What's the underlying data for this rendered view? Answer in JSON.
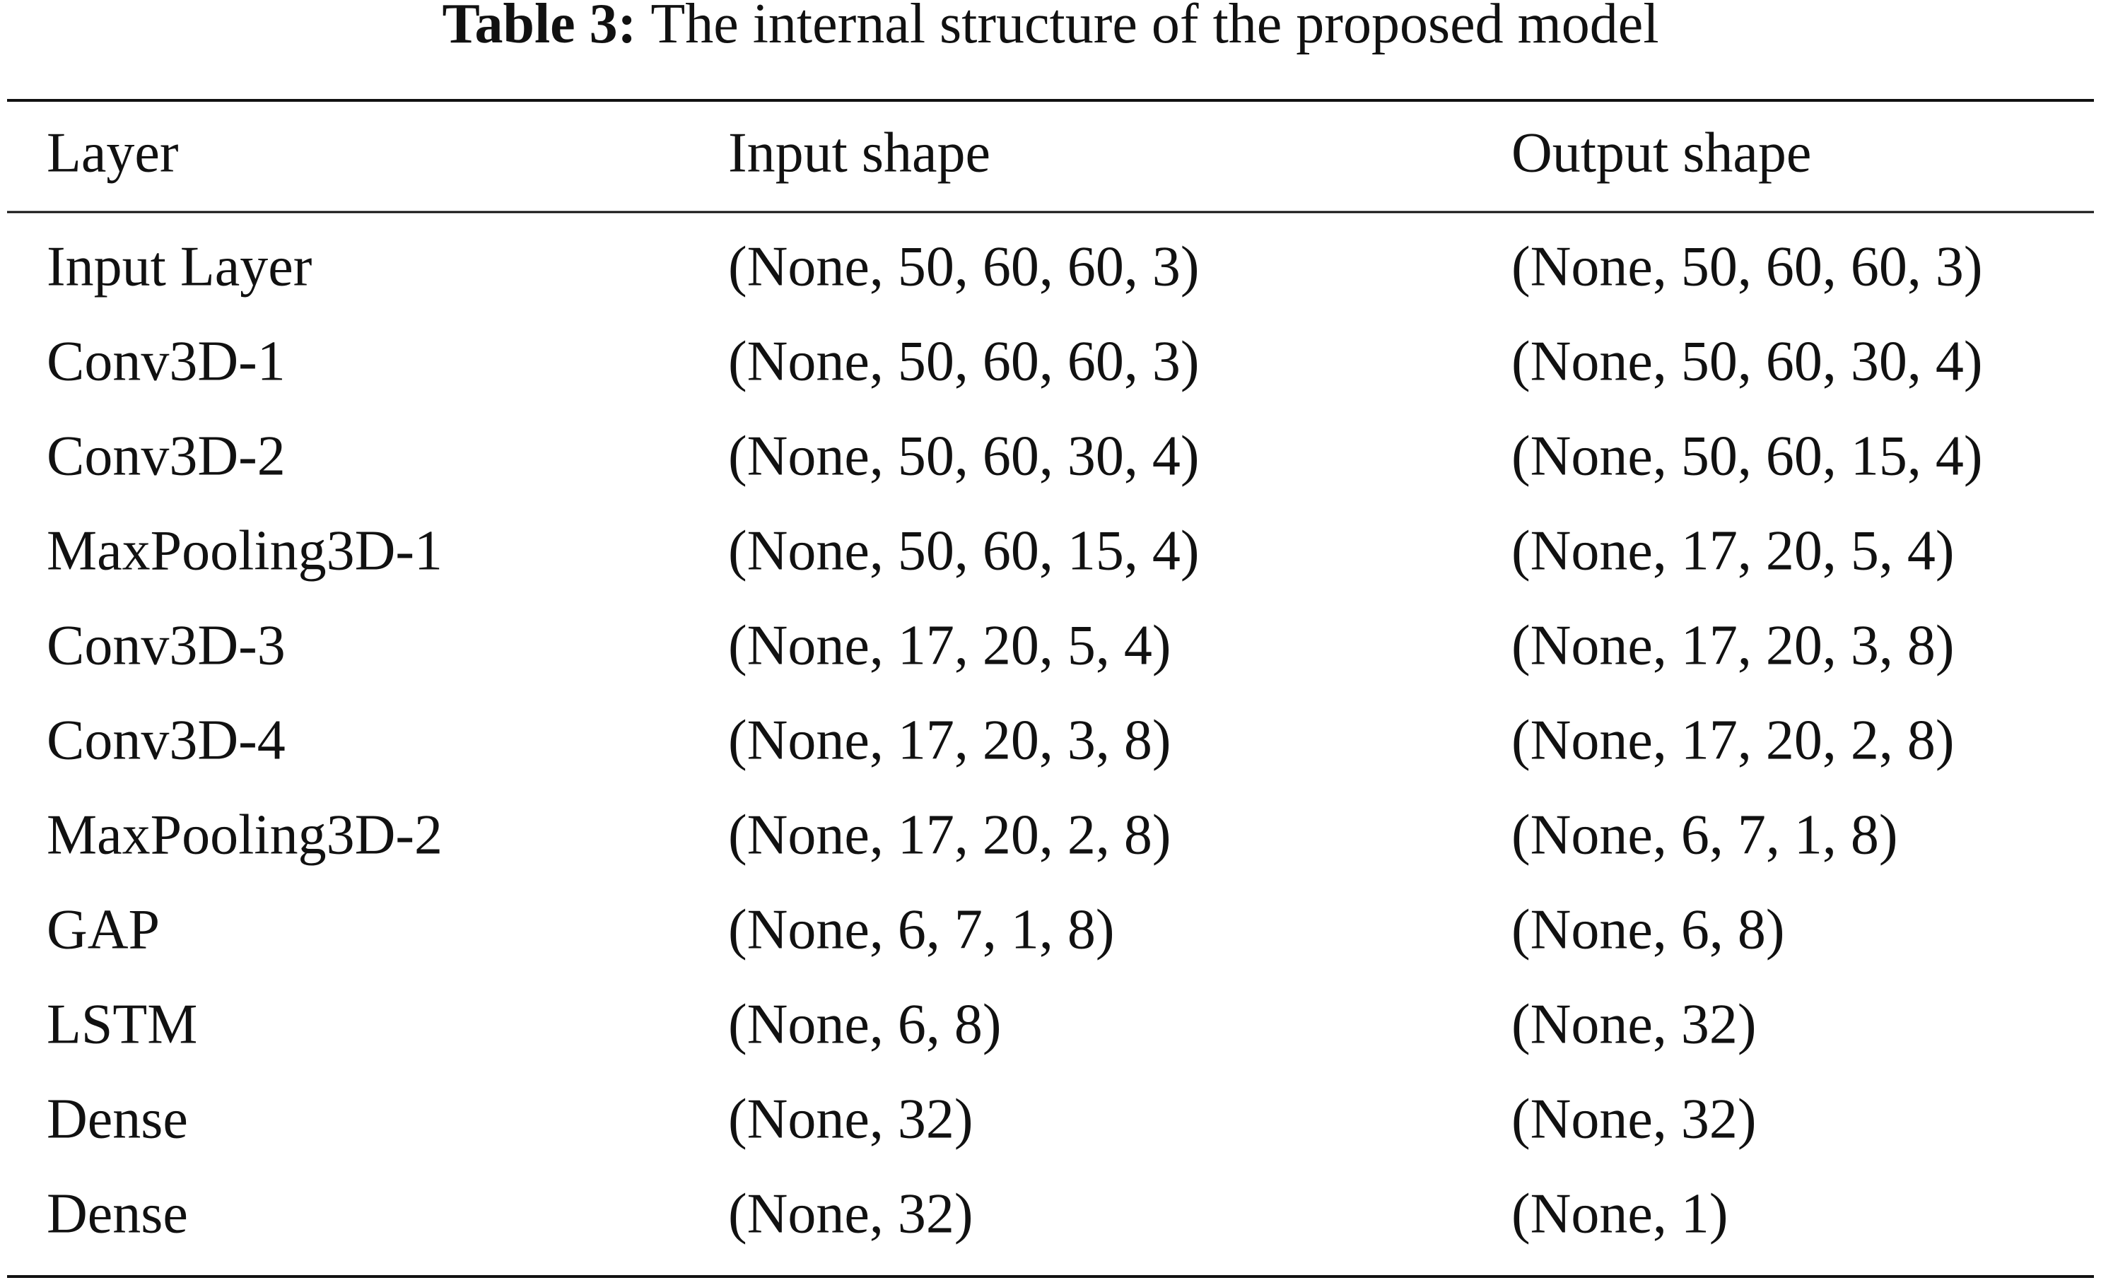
{
  "caption": {
    "label": "Table 3:",
    "text": "The internal structure of the proposed model"
  },
  "table": {
    "header": [
      "Layer",
      "Input shape",
      "Output shape"
    ],
    "rows": [
      [
        "Input Layer",
        "(None, 50, 60, 60, 3)",
        "(None, 50, 60, 60, 3)"
      ],
      [
        "Conv3D-1",
        "(None, 50, 60, 60, 3)",
        "(None, 50, 60, 30, 4)"
      ],
      [
        "Conv3D-2",
        "(None, 50, 60, 30, 4)",
        "(None, 50, 60, 15, 4)"
      ],
      [
        "MaxPooling3D-1",
        "(None, 50, 60, 15, 4)",
        "(None, 17, 20, 5, 4)"
      ],
      [
        "Conv3D-3",
        "(None, 17, 20, 5, 4)",
        "(None, 17, 20, 3, 8)"
      ],
      [
        "Conv3D-4",
        "(None, 17, 20, 3, 8)",
        "(None, 17, 20, 2, 8)"
      ],
      [
        "MaxPooling3D-2",
        "(None, 17, 20, 2, 8)",
        "(None, 6, 7, 1, 8)"
      ],
      [
        "GAP",
        "(None, 6, 7, 1, 8)",
        "(None, 6, 8)"
      ],
      [
        "LSTM",
        "(None, 6, 8)",
        "(None, 32)"
      ],
      [
        "Dense",
        "(None, 32)",
        "(None, 32)"
      ],
      [
        "Dense",
        "(None, 32)",
        "(None, 1)"
      ]
    ]
  }
}
